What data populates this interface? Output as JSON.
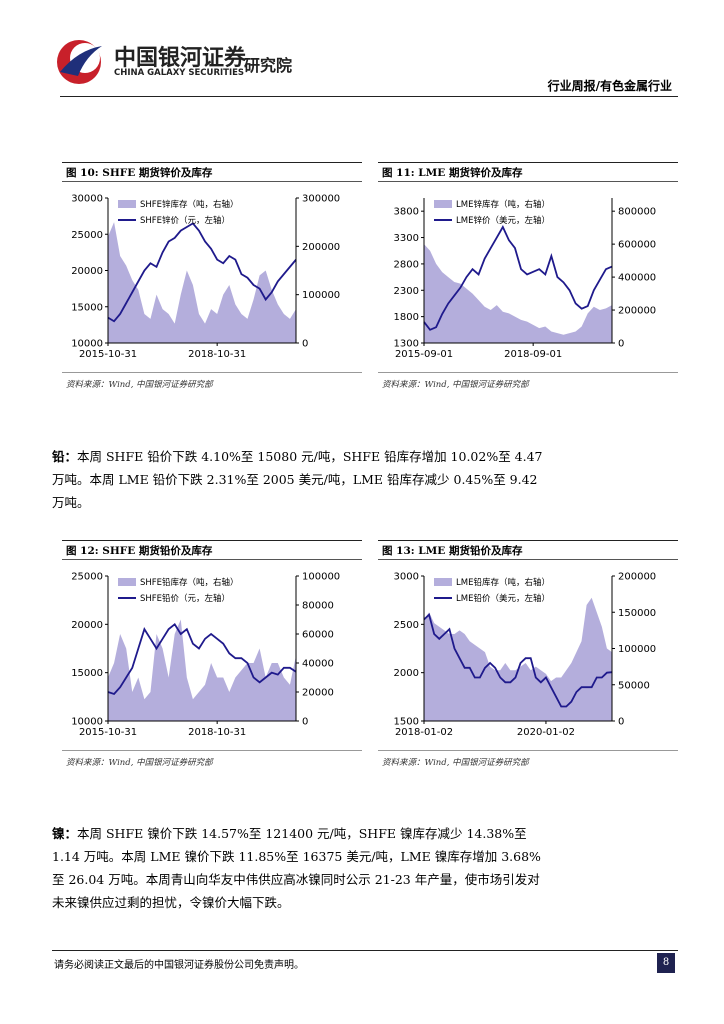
{
  "header": {
    "brand_cn": "中国银河证券",
    "brand_en": "CHINA GALAXY SECURITIES",
    "institute": "研究院",
    "report_type": "行业周报/有色金属行业"
  },
  "figures": [
    {
      "caption": "图 10: SHFE 期货锌价及库存",
      "source": "资料来源：Wind, 中国银河证券研究部",
      "chart": {
        "type": "combo",
        "categories": [
          "2015-10-31",
          null,
          null,
          null,
          null,
          null,
          null,
          null,
          null,
          null,
          null,
          null,
          null,
          null,
          null,
          null,
          null,
          null,
          "2018-10-31",
          null,
          null,
          null,
          null,
          null,
          null,
          null,
          null,
          null,
          null,
          null,
          null,
          null
        ],
        "ylim": [
          10000,
          30000
        ],
        "yticks": [
          10000,
          15000,
          20000,
          25000,
          30000
        ],
        "y2lim": [
          0,
          300000
        ],
        "y2ticks": [
          0,
          100000,
          200000,
          300000
        ],
        "series": [
          {
            "name": "SHFE锌库存（吨，右轴）",
            "type": "area",
            "axis": "y2",
            "color": "#b4aedc",
            "values": [
              220000,
              250000,
              180000,
              160000,
              130000,
              110000,
              60000,
              50000,
              100000,
              70000,
              60000,
              40000,
              100000,
              150000,
              120000,
              60000,
              40000,
              70000,
              60000,
              100000,
              120000,
              80000,
              60000,
              50000,
              90000,
              140000,
              150000,
              110000,
              80000,
              60000,
              50000,
              70000
            ]
          },
          {
            "name": "SHFE锌价（元，左轴）",
            "type": "line",
            "axis": "y",
            "color": "#1f1a8c",
            "values": [
              13500,
              13000,
              14000,
              15500,
              17000,
              18500,
              20000,
              21000,
              20500,
              22500,
              24000,
              24500,
              25500,
              26000,
              26500,
              25500,
              24000,
              23000,
              21500,
              21000,
              22000,
              21500,
              19500,
              19000,
              18000,
              17500,
              16000,
              17000,
              18500,
              19500,
              20500,
              21500
            ]
          }
        ]
      }
    },
    {
      "caption": "图 11: LME 期货锌价及库存",
      "source": "资料来源：Wind, 中国银河证券研究部",
      "chart": {
        "type": "combo",
        "categories": [
          "2015-09-01",
          null,
          null,
          null,
          null,
          null,
          null,
          null,
          null,
          null,
          null,
          null,
          null,
          null,
          null,
          null,
          null,
          null,
          "2018-09-01",
          null,
          null,
          null,
          null,
          null,
          null,
          null,
          null,
          null,
          null,
          null,
          null,
          null
        ],
        "ylim": [
          1300,
          4050
        ],
        "yticks": [
          1300,
          1800,
          2300,
          2800,
          3300,
          3800
        ],
        "y2lim": [
          0,
          880000
        ],
        "y2ticks": [
          0,
          200000,
          400000,
          600000,
          800000
        ],
        "series": [
          {
            "name": "LME锌库存（吨，右轴）",
            "type": "area",
            "axis": "y2",
            "color": "#b4aedc",
            "values": [
              600000,
              560000,
              480000,
              430000,
              400000,
              370000,
              360000,
              330000,
              300000,
              260000,
              220000,
              200000,
              230000,
              190000,
              180000,
              160000,
              140000,
              130000,
              110000,
              90000,
              100000,
              70000,
              60000,
              50000,
              60000,
              70000,
              100000,
              180000,
              220000,
              200000,
              210000,
              230000
            ]
          },
          {
            "name": "LME锌价（美元，左轴）",
            "type": "line",
            "axis": "y",
            "color": "#1f1a8c",
            "values": [
              1700,
              1550,
              1600,
              1850,
              2050,
              2200,
              2350,
              2550,
              2700,
              2600,
              2900,
              3100,
              3300,
              3500,
              3250,
              3100,
              2700,
              2600,
              2650,
              2700,
              2600,
              2950,
              2550,
              2450,
              2300,
              2050,
              1950,
              2000,
              2300,
              2500,
              2700,
              2750
            ]
          }
        ]
      }
    },
    {
      "caption": "图 12: SHFE 期货铅价及库存",
      "source": "资料来源：Wind, 中国银河证券研究部",
      "chart": {
        "type": "combo",
        "categories": [
          "2015-10-31",
          null,
          null,
          null,
          null,
          null,
          null,
          null,
          null,
          null,
          null,
          null,
          null,
          null,
          null,
          null,
          null,
          null,
          "2018-10-31",
          null,
          null,
          null,
          null,
          null,
          null,
          null,
          null,
          null,
          null,
          null,
          null,
          null
        ],
        "ylim": [
          10000,
          25000
        ],
        "yticks": [
          10000,
          15000,
          20000,
          25000
        ],
        "y2lim": [
          0,
          100000
        ],
        "y2ticks": [
          0,
          20000,
          40000,
          60000,
          80000,
          100000
        ],
        "series": [
          {
            "name": "SHFE铅库存（吨，右轴）",
            "type": "area",
            "axis": "y2",
            "color": "#b4aedc",
            "values": [
              30000,
              40000,
              60000,
              50000,
              20000,
              30000,
              15000,
              20000,
              60000,
              50000,
              30000,
              60000,
              70000,
              30000,
              15000,
              20000,
              25000,
              40000,
              30000,
              30000,
              20000,
              30000,
              35000,
              40000,
              40000,
              50000,
              30000,
              40000,
              40000,
              30000,
              25000,
              45000
            ]
          },
          {
            "name": "SHFE铅价（元，左轴）",
            "type": "line",
            "axis": "y",
            "color": "#1f1a8c",
            "values": [
              13000,
              12800,
              13500,
              14500,
              15500,
              17500,
              19500,
              18500,
              17500,
              18500,
              19500,
              20000,
              19000,
              19500,
              18000,
              17500,
              18500,
              19000,
              18500,
              18000,
              17000,
              16500,
              16500,
              16000,
              14500,
              14000,
              14500,
              15000,
              14800,
              15500,
              15500,
              15100
            ]
          }
        ]
      }
    },
    {
      "caption": "图 13: LME 期货铅价及库存",
      "source": "资料来源：Wind, 中国银河证券研究部",
      "chart": {
        "type": "combo",
        "categories": [
          "2018-01-02",
          null,
          null,
          null,
          null,
          null,
          null,
          null,
          null,
          null,
          null,
          null,
          null,
          null,
          null,
          null,
          null,
          null,
          null,
          null,
          null,
          null,
          null,
          null,
          "2020-01-02",
          null,
          null,
          null,
          null,
          null,
          null,
          null,
          null,
          null,
          null,
          null,
          null,
          null
        ],
        "ylim": [
          1500,
          3000
        ],
        "yticks": [
          1500,
          2000,
          2500,
          3000
        ],
        "y2lim": [
          0,
          200000
        ],
        "y2ticks": [
          0,
          50000,
          100000,
          150000,
          200000
        ],
        "series": [
          {
            "name": "LME铅库存（吨，右轴）",
            "type": "area",
            "axis": "y2",
            "color": "#b4aedc",
            "values": [
              140000,
              150000,
              135000,
              130000,
              125000,
              120000,
              120000,
              125000,
              120000,
              110000,
              105000,
              100000,
              95000,
              75000,
              70000,
              70000,
              80000,
              70000,
              70000,
              75000,
              80000,
              70000,
              75000,
              70000,
              65000,
              55000,
              60000,
              60000,
              70000,
              80000,
              95000,
              110000,
              160000,
              170000,
              150000,
              130000,
              100000,
              95000
            ]
          },
          {
            "name": "LME铅价（美元，左轴）",
            "type": "line",
            "axis": "y",
            "color": "#1f1a8c",
            "values": [
              2550,
              2600,
              2400,
              2350,
              2400,
              2450,
              2250,
              2150,
              2050,
              2050,
              1950,
              1950,
              2050,
              2100,
              2050,
              1950,
              1900,
              1900,
              1950,
              2100,
              2150,
              2150,
              1950,
              1900,
              1950,
              1850,
              1750,
              1650,
              1650,
              1700,
              1800,
              1850,
              1850,
              1850,
              1950,
              1950,
              2000,
              2005
            ]
          }
        ]
      }
    }
  ],
  "paragraphs": [
    {
      "label": "铅：",
      "text": "本周 SHFE 铅价下跌 4.10%至 15080 元/吨，SHFE 铅库存增加 10.02%至 4.47 万吨。本周 LME 铅价下跌 2.31%至 2005 美元/吨，LME 铅库存减少 0.45%至 9.42 万吨。"
    },
    {
      "label": "镍：",
      "text": "本周 SHFE 镍价下跌 14.57%至 121400 元/吨，SHFE 镍库存减少 14.38%至 1.14 万吨。本周 LME 镍价下跌 11.85%至 16375 美元/吨，LME 镍库存增加 3.68%至 26.04 万吨。本周青山向华友中伟供应高冰镍同时公示 21-23 年产量，使市场引发对未来镍供应过剩的担忧，令镍价大幅下跌。"
    }
  ],
  "footer": {
    "disclaimer": "请务必阅读正文最后的中国银河证券股份公司免责声明。",
    "page": 8
  }
}
